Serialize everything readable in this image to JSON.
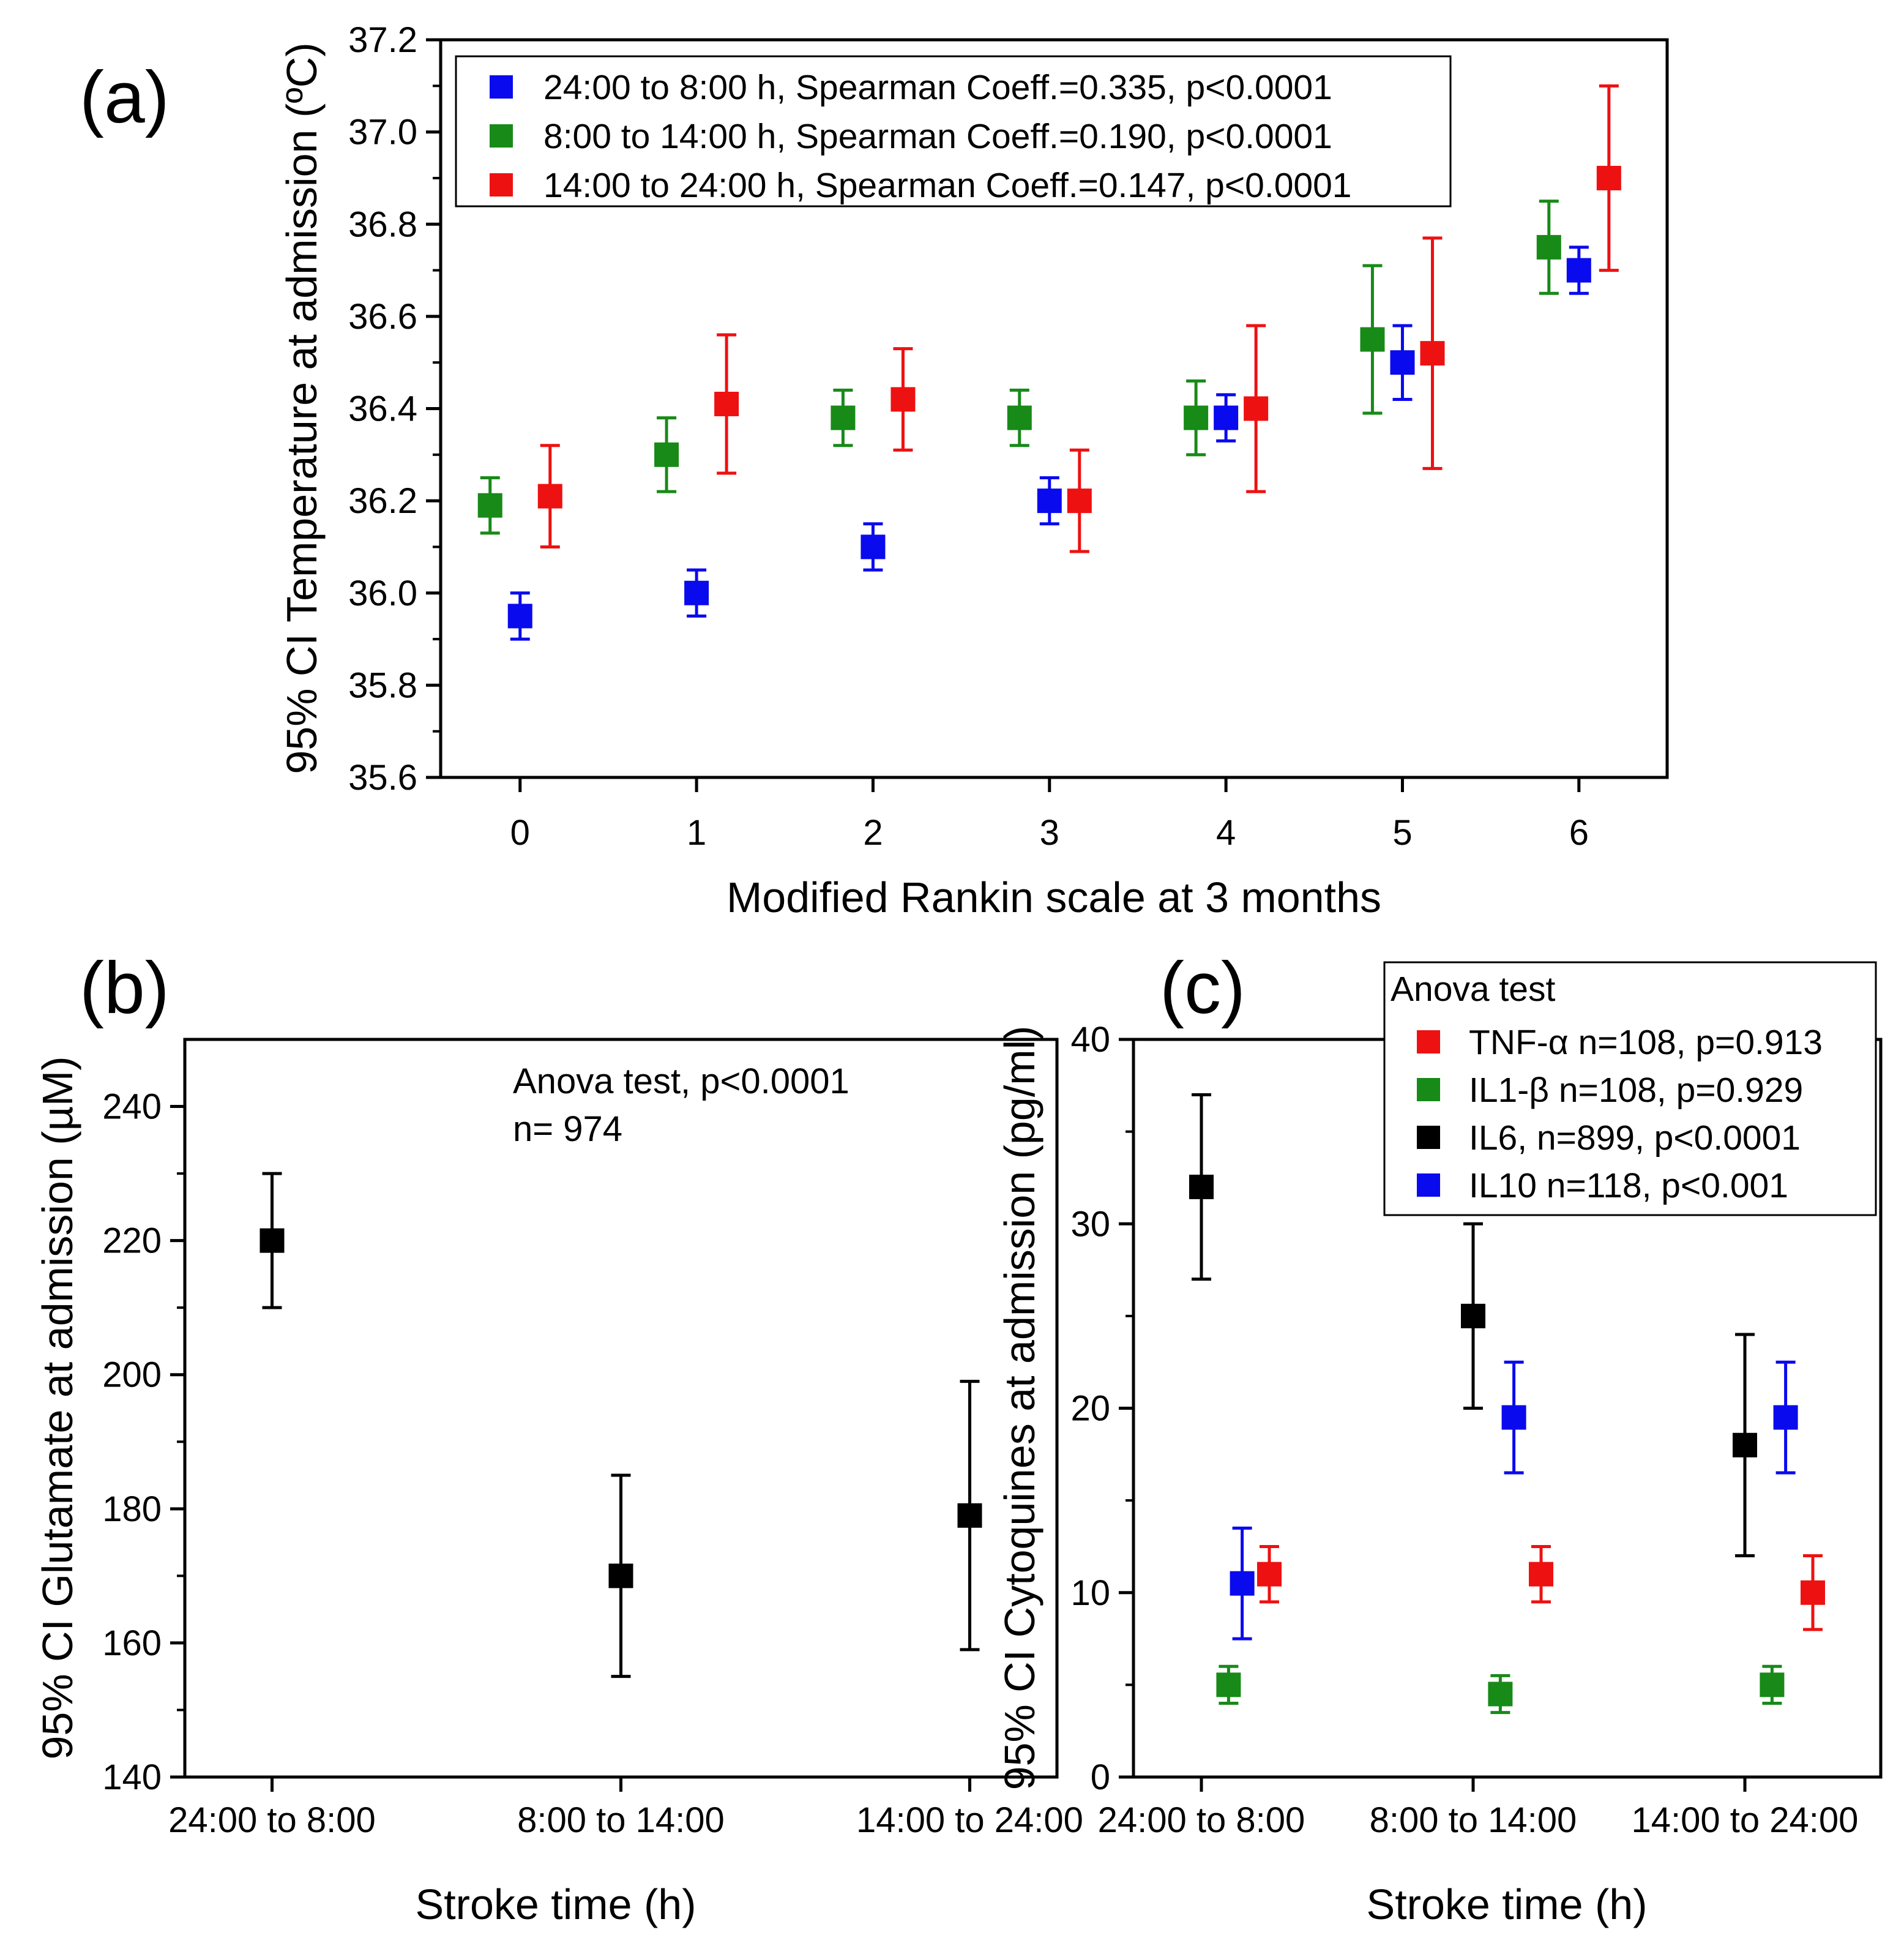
{
  "chart_data": [
    {
      "panel_label": "(a)",
      "type": "scatter",
      "subtype": "point-with-95%-CI-error-bars",
      "xlabel": "Modified Rankin scale at 3 months",
      "ylabel": "95% CI Temperature at admission (ºC)",
      "xlim": [
        -0.45,
        6.5
      ],
      "ylim": [
        35.6,
        37.2
      ],
      "x_ticks": [
        0,
        1,
        2,
        3,
        4,
        5,
        6
      ],
      "x_tick_labels": [
        "0",
        "1",
        "2",
        "3",
        "4",
        "5",
        "6"
      ],
      "y_ticks": [
        35.6,
        35.8,
        36.0,
        36.2,
        36.4,
        36.6,
        36.8,
        37.0,
        37.2
      ],
      "y_tick_labels": [
        "35.6",
        "35.8",
        "36.0",
        "36.2",
        "36.4",
        "36.6",
        "36.8",
        "37.0",
        "37.2"
      ],
      "legend_position": "top-left",
      "series": [
        {
          "name": "24:00 to 8:00 h, Spearman Coeff.=0.335, p<0.0001",
          "color": "#0a0aee",
          "offset": 0,
          "points": [
            {
              "x": 0,
              "y": 35.95,
              "low": 35.9,
              "high": 36.0
            },
            {
              "x": 1,
              "y": 36.0,
              "low": 35.95,
              "high": 36.05
            },
            {
              "x": 2,
              "y": 36.1,
              "low": 36.05,
              "high": 36.15
            },
            {
              "x": 3,
              "y": 36.2,
              "low": 36.15,
              "high": 36.25
            },
            {
              "x": 4,
              "y": 36.38,
              "low": 36.33,
              "high": 36.43
            },
            {
              "x": 5,
              "y": 36.5,
              "low": 36.42,
              "high": 36.58
            },
            {
              "x": 6,
              "y": 36.7,
              "low": 36.65,
              "high": 36.75
            }
          ]
        },
        {
          "name": "8:00 to 14:00 h, Spearman Coeff.=0.190, p<0.0001",
          "color": "#188a18",
          "offset": -0.17,
          "points": [
            {
              "x": 0,
              "y": 36.19,
              "low": 36.13,
              "high": 36.25
            },
            {
              "x": 1,
              "y": 36.3,
              "low": 36.22,
              "high": 36.38
            },
            {
              "x": 2,
              "y": 36.38,
              "low": 36.32,
              "high": 36.44
            },
            {
              "x": 3,
              "y": 36.38,
              "low": 36.32,
              "high": 36.44
            },
            {
              "x": 4,
              "y": 36.38,
              "low": 36.3,
              "high": 36.46
            },
            {
              "x": 5,
              "y": 36.55,
              "low": 36.39,
              "high": 36.71
            },
            {
              "x": 6,
              "y": 36.75,
              "low": 36.65,
              "high": 36.85
            }
          ]
        },
        {
          "name": "14:00 to 24:00 h, Spearman Coeff.=0.147, p<0.0001",
          "color": "#ee1111",
          "offset": 0.17,
          "points": [
            {
              "x": 0,
              "y": 36.21,
              "low": 36.1,
              "high": 36.32
            },
            {
              "x": 1,
              "y": 36.41,
              "low": 36.26,
              "high": 36.56
            },
            {
              "x": 2,
              "y": 36.42,
              "low": 36.31,
              "high": 36.53
            },
            {
              "x": 3,
              "y": 36.2,
              "low": 36.09,
              "high": 36.31
            },
            {
              "x": 4,
              "y": 36.4,
              "low": 36.22,
              "high": 36.58
            },
            {
              "x": 5,
              "y": 36.52,
              "low": 36.27,
              "high": 36.77
            },
            {
              "x": 6,
              "y": 36.9,
              "low": 36.7,
              "high": 37.1
            }
          ]
        }
      ]
    },
    {
      "panel_label": "(b)",
      "type": "scatter",
      "subtype": "point-with-95%-CI-error-bars",
      "xlabel": "Stroke time (h)",
      "ylabel": "95% CI Glutamate at admission (µM)",
      "xlim": [
        -0.25,
        2.25
      ],
      "ylim": [
        140,
        250
      ],
      "categories": [
        "24:00 to 8:00",
        "8:00 to 14:00",
        "14:00 to 24:00"
      ],
      "y_ticks": [
        140,
        160,
        180,
        200,
        220,
        240
      ],
      "y_tick_labels": [
        "140",
        "160",
        "180",
        "200",
        "220",
        "240"
      ],
      "annotation": [
        "Anova test, p<0.0001",
        "n= 974"
      ],
      "series": [
        {
          "name": "Glutamate",
          "color": "#000000",
          "offset": 0,
          "points": [
            {
              "x": 0,
              "y": 220,
              "low": 210,
              "high": 230
            },
            {
              "x": 1,
              "y": 170,
              "low": 155,
              "high": 185
            },
            {
              "x": 2,
              "y": 179,
              "low": 159,
              "high": 199
            }
          ]
        }
      ]
    },
    {
      "panel_label": "(c)",
      "type": "scatter",
      "subtype": "point-with-95%-CI-error-bars",
      "xlabel": "Stroke time (h)",
      "ylabel": "95% CI Cytoquines at admission (pg/ml)",
      "xlim": [
        -0.25,
        2.5
      ],
      "ylim": [
        0,
        40
      ],
      "categories": [
        "24:00 to 8:00",
        "8:00 to 14:00",
        "14:00 to 24:00"
      ],
      "y_ticks": [
        0,
        10,
        20,
        30,
        40
      ],
      "y_tick_labels": [
        "0",
        "10",
        "20",
        "30",
        "40"
      ],
      "legend_title": "Anova test",
      "legend_position": "top-right",
      "series": [
        {
          "name": "TNF-α n=108, p=0.913",
          "color": "#ee1111",
          "offset": 0.25,
          "points": [
            {
              "x": 0,
              "y": 11,
              "low": 9.5,
              "high": 12.5
            },
            {
              "x": 1,
              "y": 11,
              "low": 9.5,
              "high": 12.5
            },
            {
              "x": 2,
              "y": 10,
              "low": 8.0,
              "high": 12.0
            }
          ]
        },
        {
          "name": "IL1-β n=108, p=0.929",
          "color": "#188a18",
          "offset": 0.1,
          "points": [
            {
              "x": 0,
              "y": 5,
              "low": 4.0,
              "high": 6.0
            },
            {
              "x": 1,
              "y": 4.5,
              "low": 3.5,
              "high": 5.5
            },
            {
              "x": 2,
              "y": 5,
              "low": 4.0,
              "high": 6.0
            }
          ]
        },
        {
          "name": "IL6, n=899, p<0.0001",
          "color": "#000000",
          "offset": 0,
          "points": [
            {
              "x": 0,
              "y": 32,
              "low": 27,
              "high": 37
            },
            {
              "x": 1,
              "y": 25,
              "low": 20,
              "high": 30
            },
            {
              "x": 2,
              "y": 18,
              "low": 12,
              "high": 24
            }
          ]
        },
        {
          "name": "IL10 n=118, p<0.001",
          "color": "#0a0aee",
          "offset": 0.15,
          "points": [
            {
              "x": 0,
              "y": 10.5,
              "low": 7.5,
              "high": 13.5
            },
            {
              "x": 1,
              "y": 19.5,
              "low": 16.5,
              "high": 22.5
            },
            {
              "x": 2,
              "y": 19.5,
              "low": 16.5,
              "high": 22.5
            }
          ]
        }
      ]
    }
  ]
}
